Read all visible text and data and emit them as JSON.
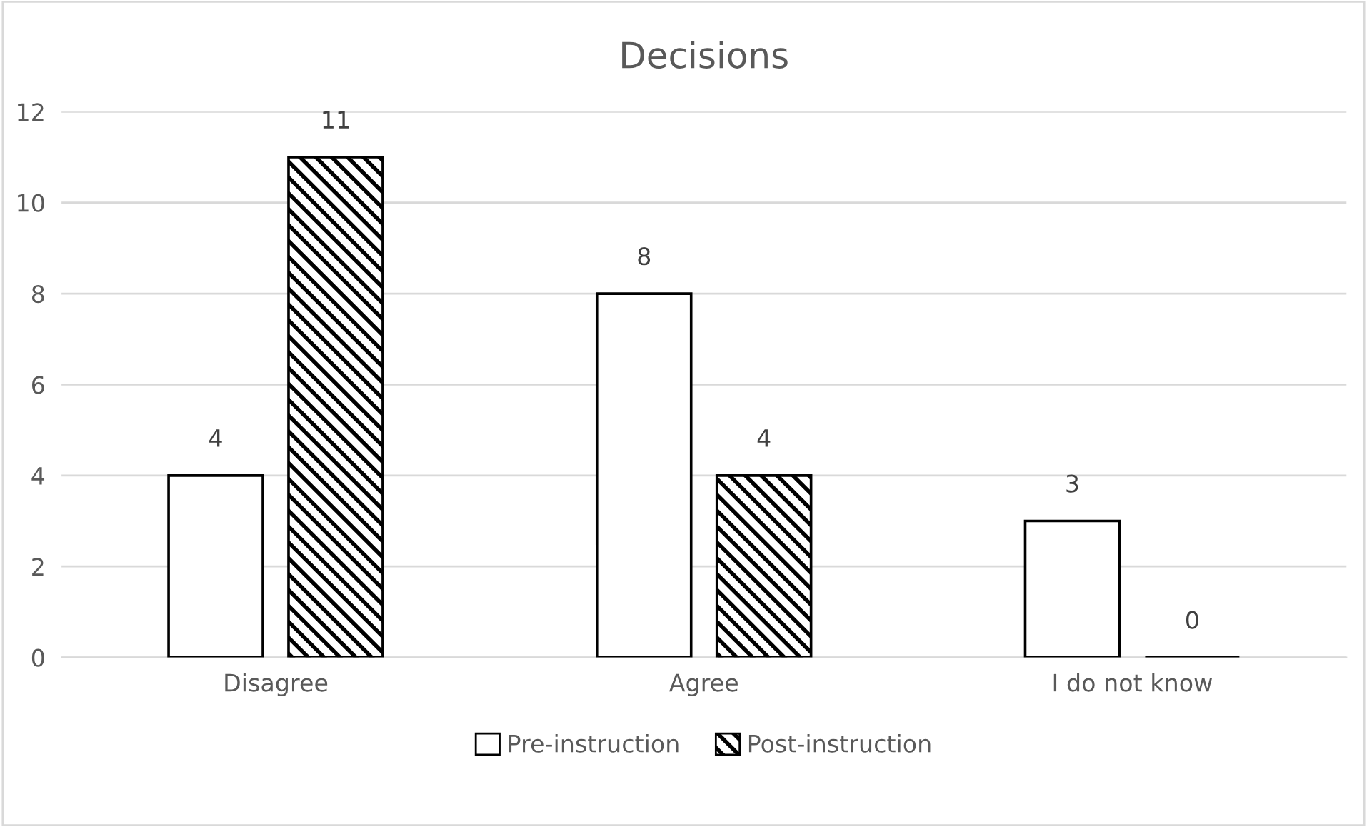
{
  "chart_data": {
    "type": "bar",
    "title": "Decisions",
    "categories": [
      "Disagree",
      "Agree",
      "I do not know"
    ],
    "series": [
      {
        "name": "Pre-instruction",
        "color": "#ffffff",
        "values": [
          4,
          8,
          3
        ]
      },
      {
        "name": "Post-instruction",
        "color": "#000000",
        "values": [
          11,
          4,
          0
        ]
      }
    ],
    "ylim": [
      0,
      12
    ],
    "yticks": [
      0,
      2,
      4,
      6,
      8,
      10,
      12
    ],
    "grid": "y",
    "legend": "bottom",
    "data_labels": true
  }
}
